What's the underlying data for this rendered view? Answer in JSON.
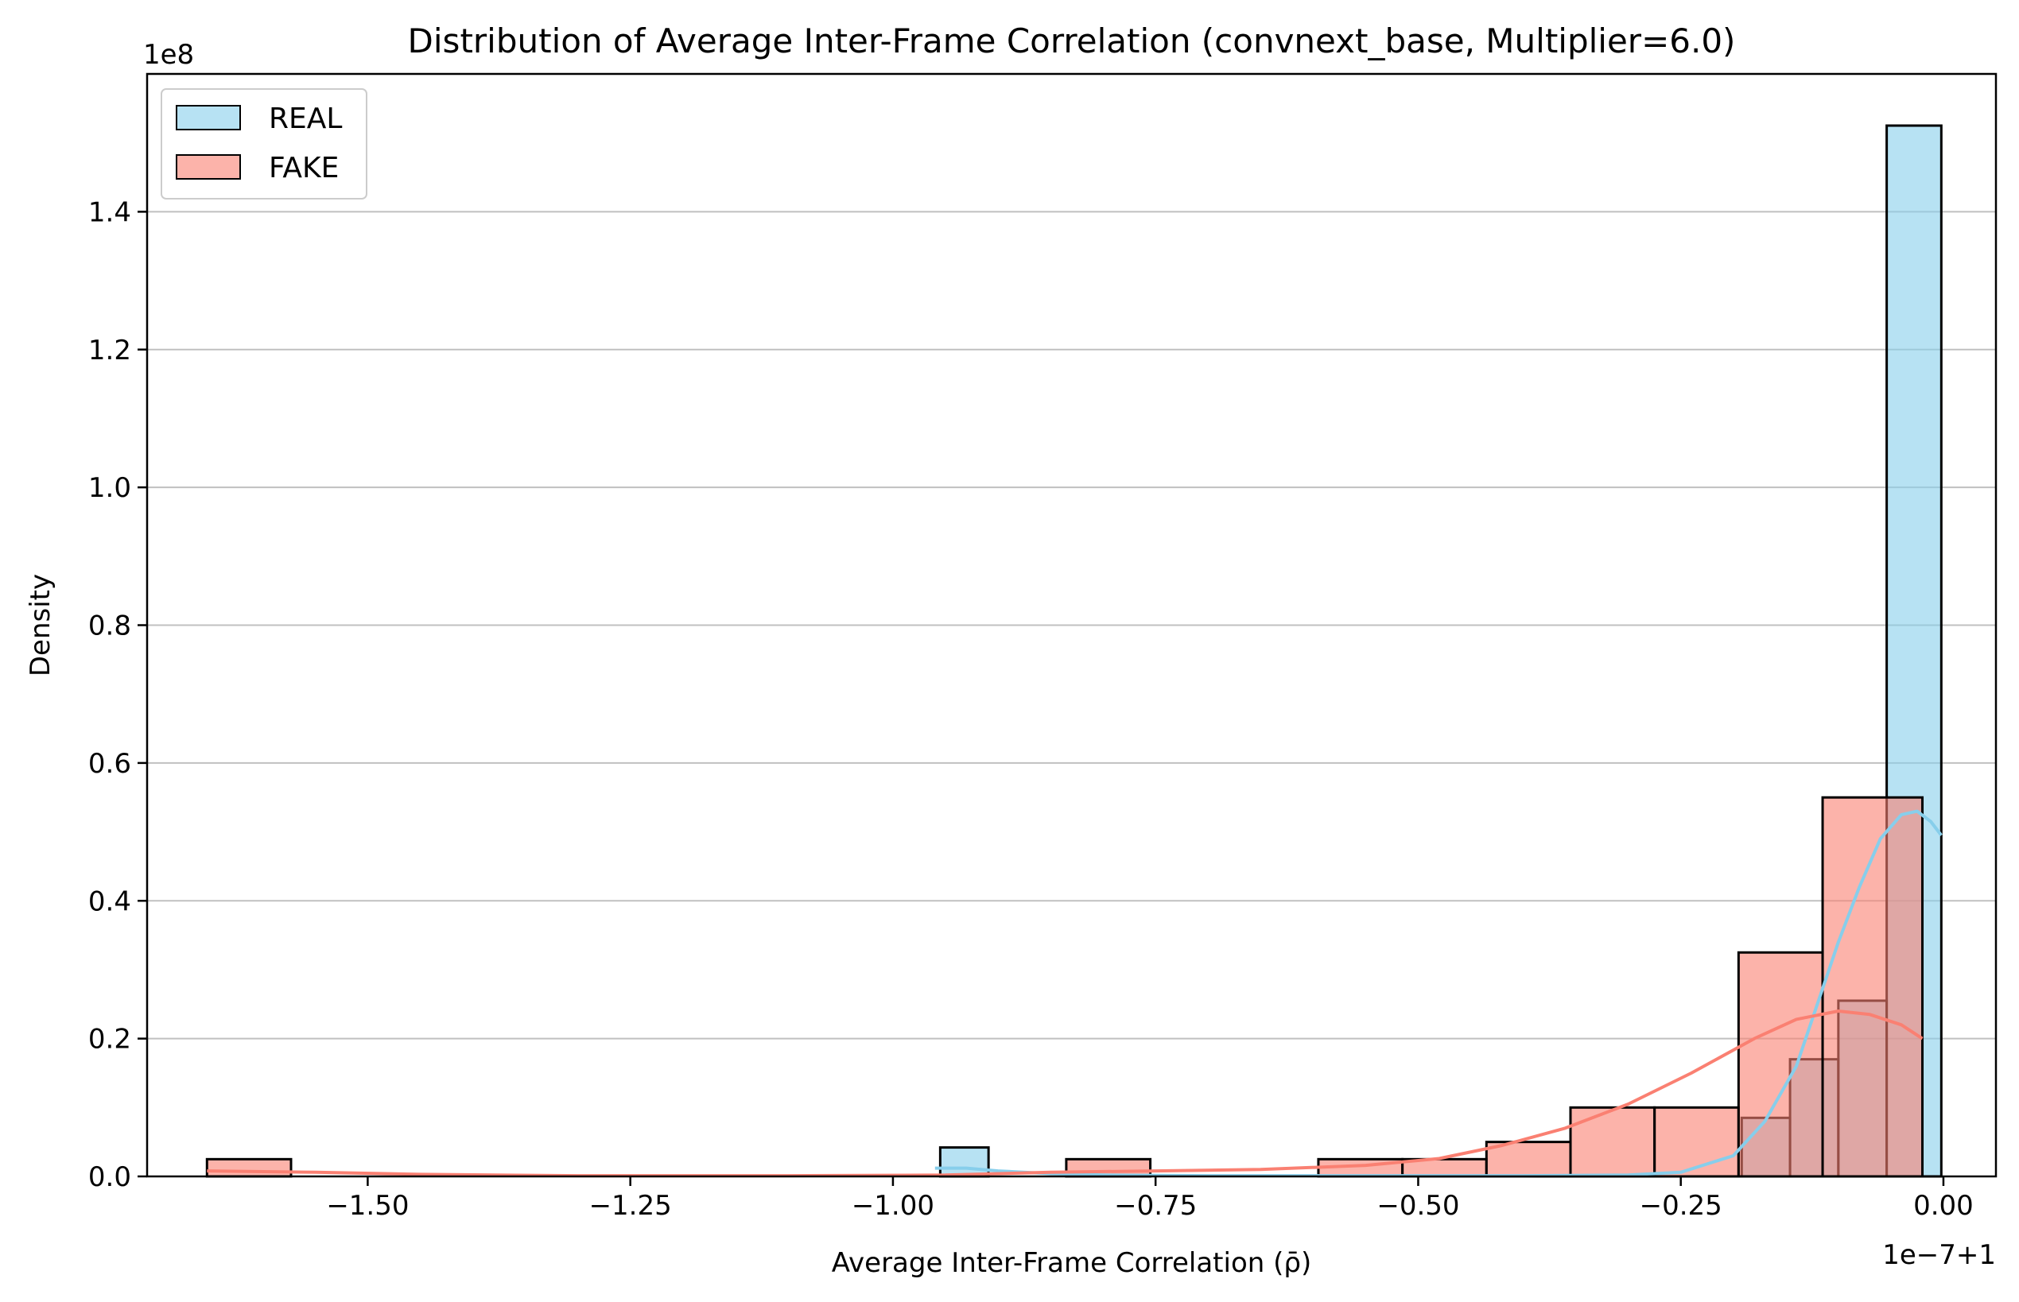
{
  "chart_data": {
    "type": "histogram",
    "title": "Distribution of Average Inter-Frame Correlation (convnext_base, Multiplier=6.0)",
    "xlabel": "Average Inter-Frame Correlation (ρ̄)",
    "ylabel": "Density",
    "x_offset_label": "1e−7+1",
    "y_scale_label": "1e8",
    "xlim": [
      -1.71,
      0.05
    ],
    "ylim": [
      0,
      1.6
    ],
    "x_ticks": [
      -1.5,
      -1.25,
      -1.0,
      -0.75,
      -0.5,
      -0.25,
      0.0
    ],
    "x_tick_labels": [
      "−1.50",
      "−1.25",
      "−1.00",
      "−0.75",
      "−0.50",
      "−0.25",
      "0.00"
    ],
    "y_ticks": [
      0.0,
      0.2,
      0.4,
      0.6,
      0.8,
      1.0,
      1.2,
      1.4
    ],
    "y_tick_labels": [
      "0.0",
      "0.2",
      "0.4",
      "0.6",
      "0.8",
      "1.0",
      "1.2",
      "1.4"
    ],
    "grid": "horizontal",
    "legend_position": "top-left",
    "series": [
      {
        "name": "REAL",
        "color": "#87ceeb",
        "bars": [
          {
            "x0": -0.955,
            "x1": -0.909,
            "value": 0.042
          },
          {
            "x0": -0.192,
            "x1": -0.146,
            "value": 0.085
          },
          {
            "x0": -0.146,
            "x1": -0.1,
            "value": 0.17
          },
          {
            "x0": -0.1,
            "x1": -0.054,
            "value": 0.255
          },
          {
            "x0": -0.054,
            "x1": -0.002,
            "value": 1.525
          }
        ],
        "kde": [
          [
            -0.96,
            0.012
          ],
          [
            -0.93,
            0.012
          ],
          [
            -0.9,
            0.008
          ],
          [
            -0.85,
            0.004
          ],
          [
            -0.8,
            0.002
          ],
          [
            -0.7,
            0.001
          ],
          [
            -0.6,
            0.001
          ],
          [
            -0.5,
            0.001
          ],
          [
            -0.4,
            0.001
          ],
          [
            -0.3,
            0.002
          ],
          [
            -0.25,
            0.006
          ],
          [
            -0.2,
            0.03
          ],
          [
            -0.17,
            0.08
          ],
          [
            -0.14,
            0.16
          ],
          [
            -0.12,
            0.25
          ],
          [
            -0.1,
            0.34
          ],
          [
            -0.08,
            0.42
          ],
          [
            -0.06,
            0.49
          ],
          [
            -0.04,
            0.525
          ],
          [
            -0.025,
            0.53
          ],
          [
            -0.012,
            0.515
          ],
          [
            -0.002,
            0.495
          ]
        ]
      },
      {
        "name": "FAKE",
        "color": "#fa8072",
        "bars": [
          {
            "x0": -1.653,
            "x1": -1.573,
            "value": 0.025
          },
          {
            "x0": -0.835,
            "x1": -0.755,
            "value": 0.025
          },
          {
            "x0": -0.595,
            "x1": -0.515,
            "value": 0.025
          },
          {
            "x0": -0.515,
            "x1": -0.435,
            "value": 0.025
          },
          {
            "x0": -0.435,
            "x1": -0.355,
            "value": 0.05
          },
          {
            "x0": -0.355,
            "x1": -0.275,
            "value": 0.1
          },
          {
            "x0": -0.275,
            "x1": -0.195,
            "value": 0.1
          },
          {
            "x0": -0.195,
            "x1": -0.115,
            "value": 0.325
          },
          {
            "x0": -0.115,
            "x1": -0.02,
            "value": 0.55
          }
        ],
        "kde": [
          [
            -1.653,
            0.008
          ],
          [
            -1.55,
            0.006
          ],
          [
            -1.45,
            0.003
          ],
          [
            -1.3,
            0.001
          ],
          [
            -1.1,
            0.001
          ],
          [
            -0.95,
            0.002
          ],
          [
            -0.85,
            0.006
          ],
          [
            -0.75,
            0.008
          ],
          [
            -0.65,
            0.01
          ],
          [
            -0.55,
            0.016
          ],
          [
            -0.48,
            0.026
          ],
          [
            -0.42,
            0.045
          ],
          [
            -0.36,
            0.07
          ],
          [
            -0.3,
            0.105
          ],
          [
            -0.24,
            0.15
          ],
          [
            -0.18,
            0.2
          ],
          [
            -0.14,
            0.228
          ],
          [
            -0.1,
            0.24
          ],
          [
            -0.07,
            0.235
          ],
          [
            -0.04,
            0.22
          ],
          [
            -0.02,
            0.2
          ]
        ]
      }
    ]
  }
}
